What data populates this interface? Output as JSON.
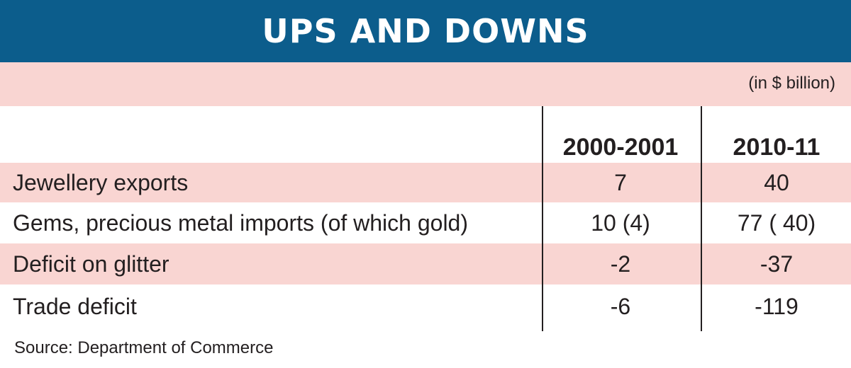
{
  "chart_data": {
    "type": "table",
    "title": "UPS AND DOWNS",
    "unit_note": "(in $ billion)",
    "columns": [
      "2000-2001",
      "2010-11"
    ],
    "rows": [
      {
        "label": "Jewellery exports",
        "values": [
          "7",
          "40"
        ]
      },
      {
        "label": "Gems, precious metal imports (of which gold)",
        "values": [
          "10 (4)",
          "77 ( 40)"
        ]
      },
      {
        "label": "Deficit on glitter",
        "values": [
          "-2",
          "-37"
        ]
      },
      {
        "label": "Trade deficit",
        "values": [
          "-6",
          "-119"
        ]
      }
    ],
    "source": "Source: Department of Commerce"
  },
  "colors": {
    "header_bar": "#0c5d8c",
    "row_tint": "#f9d5d2",
    "text": "#231f20"
  }
}
